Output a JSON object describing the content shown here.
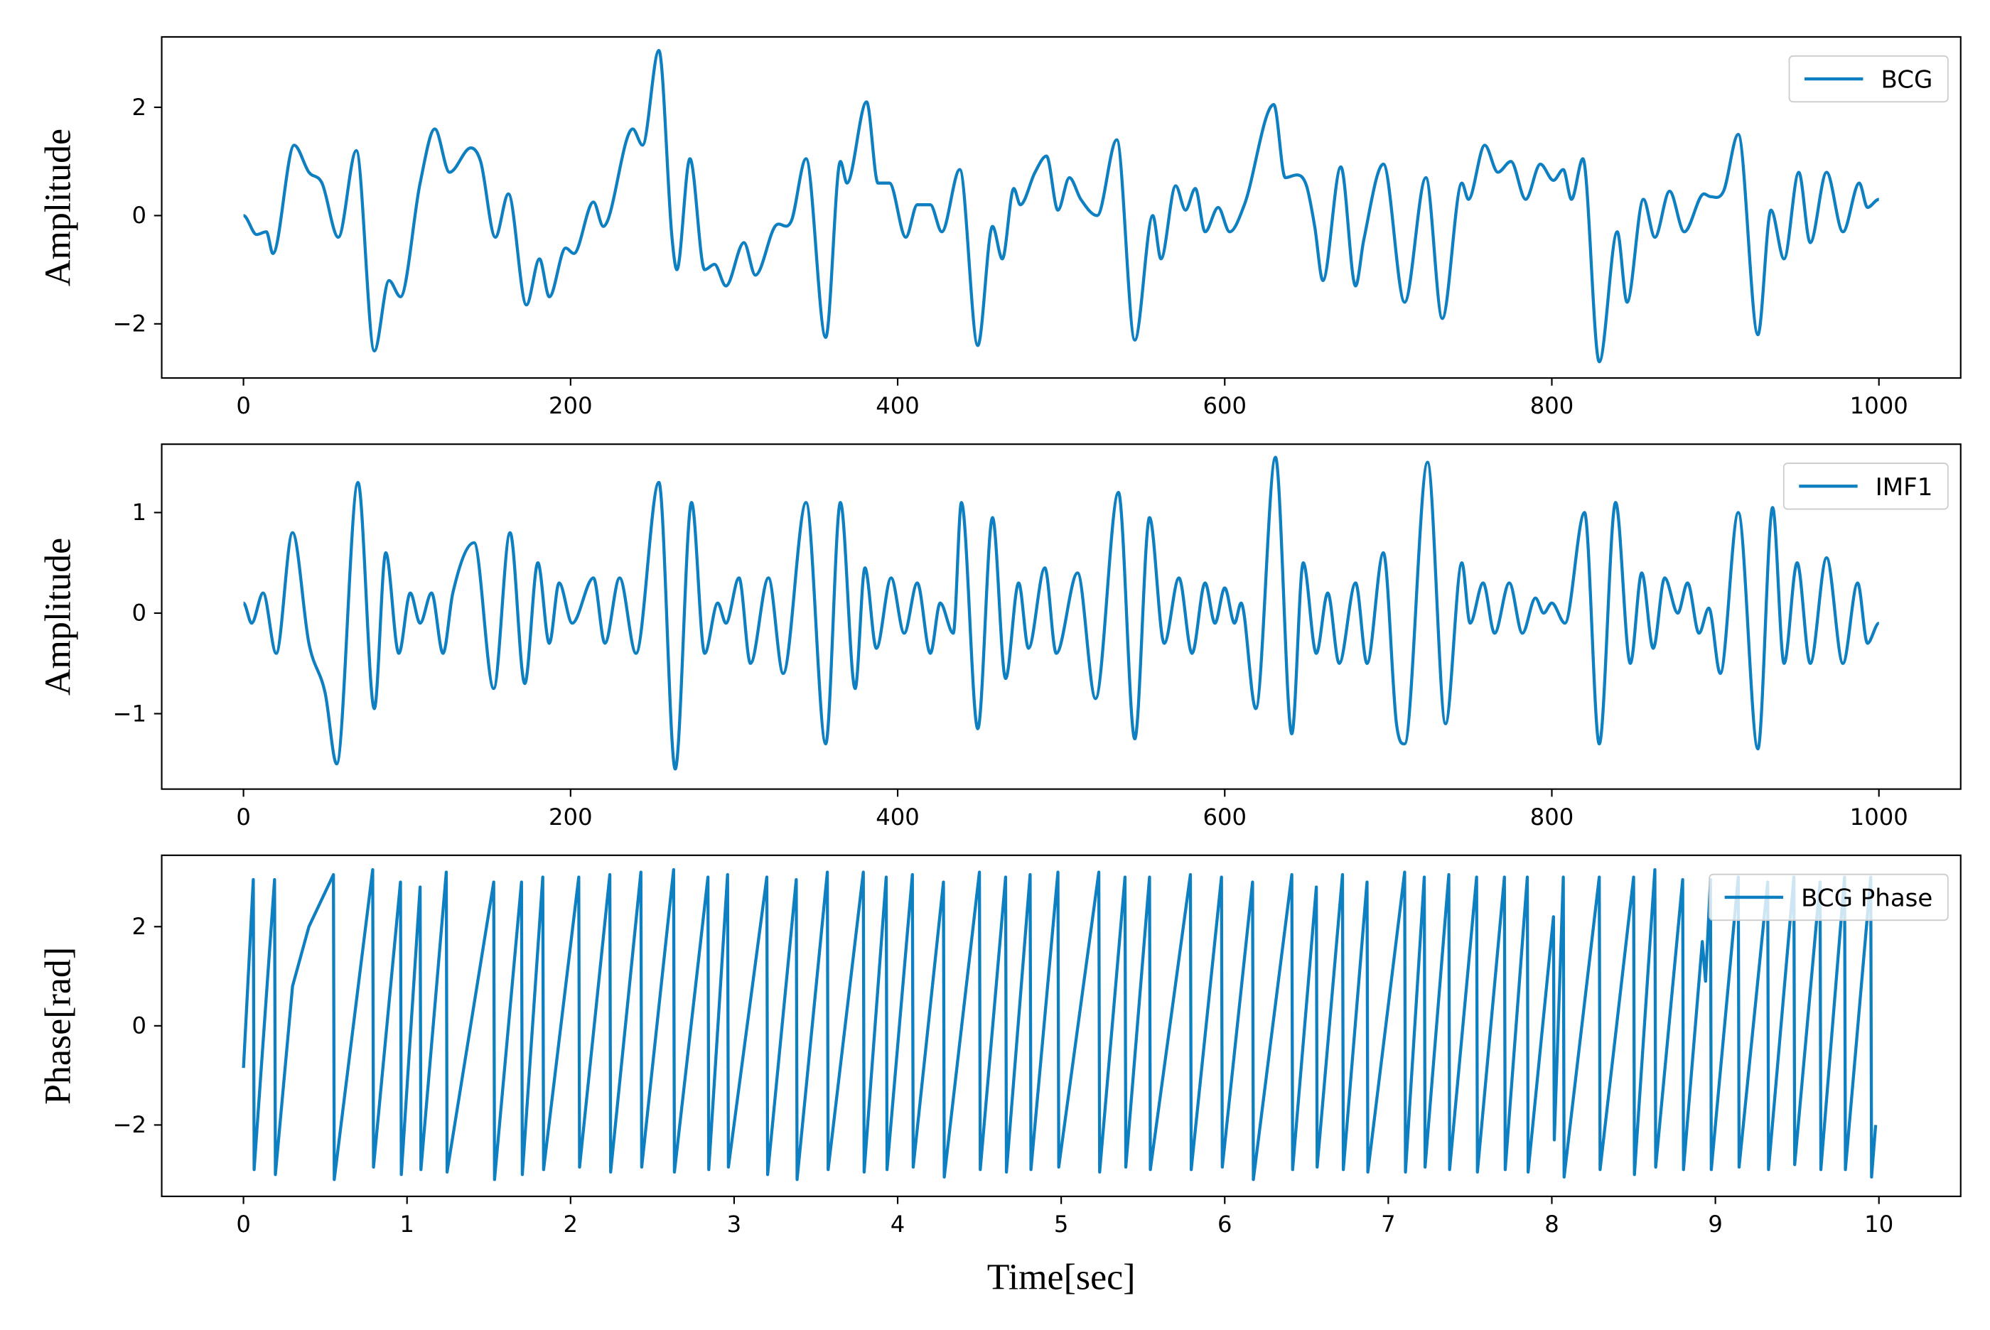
{
  "chart_data": [
    {
      "type": "line",
      "ylabel": "Amplitude",
      "legend": "upper right",
      "xlim": [
        -50,
        1050
      ],
      "ylim": [
        -3.0,
        3.3
      ],
      "xticks": [
        0,
        200,
        400,
        600,
        800,
        1000
      ],
      "yticks": [
        {
          "value": -2,
          "label": "−2"
        },
        0,
        2
      ],
      "series": [
        {
          "name": "BCG",
          "color": "#0e7fc0",
          "x": [
            0,
            8,
            14,
            18,
            31,
            40,
            48,
            58,
            69,
            80,
            89,
            96,
            108,
            117,
            126,
            139,
            145,
            154,
            162,
            173,
            181,
            187,
            197,
            202,
            214,
            220,
            238,
            244,
            254,
            262,
            265,
            273,
            282,
            288,
            295,
            306,
            313,
            325,
            335,
            344,
            356,
            365,
            369,
            381,
            388,
            395,
            405,
            412,
            420,
            427,
            438,
            449,
            458,
            464,
            471,
            475,
            484,
            491,
            498,
            505,
            512,
            522,
            534,
            545,
            556,
            561,
            570,
            576,
            582,
            588,
            596,
            603,
            612,
            630,
            637,
            644,
            650,
            655,
            660,
            671,
            680,
            685,
            697,
            710,
            723,
            733,
            745,
            749,
            759,
            767,
            775,
            784,
            793,
            801,
            807,
            812,
            819,
            829,
            840,
            846,
            856,
            863,
            872,
            881,
            893,
            897,
            905,
            914,
            926,
            934,
            942,
            951,
            958,
            968,
            978,
            988,
            993,
            1000
          ],
          "values": [
            0.0,
            -0.35,
            -0.3,
            -0.7,
            1.3,
            0.8,
            0.6,
            -0.4,
            1.2,
            -2.5,
            -1.2,
            -1.5,
            0.6,
            1.6,
            0.8,
            1.25,
            1.0,
            -0.4,
            0.4,
            -1.65,
            -0.8,
            -1.5,
            -0.6,
            -0.7,
            0.25,
            -0.2,
            1.6,
            1.3,
            3.05,
            -0.4,
            -1.0,
            1.05,
            -1.0,
            -0.9,
            -1.3,
            -0.5,
            -1.1,
            -0.2,
            -0.1,
            1.05,
            -2.25,
            1.0,
            0.6,
            2.1,
            0.6,
            0.6,
            -0.4,
            0.2,
            0.2,
            -0.3,
            0.85,
            -2.4,
            -0.2,
            -0.8,
            0.5,
            0.2,
            0.8,
            1.1,
            0.1,
            0.7,
            0.3,
            0.0,
            1.4,
            -2.3,
            0.0,
            -0.8,
            0.55,
            0.1,
            0.5,
            -0.3,
            0.15,
            -0.3,
            0.2,
            2.05,
            0.7,
            0.75,
            0.55,
            -0.2,
            -1.2,
            0.9,
            -1.3,
            -0.45,
            0.95,
            -1.6,
            0.7,
            -1.9,
            0.6,
            0.3,
            1.3,
            0.8,
            1.0,
            0.3,
            0.95,
            0.65,
            0.85,
            0.3,
            1.05,
            -2.7,
            -0.3,
            -1.6,
            0.3,
            -0.4,
            0.45,
            -0.3,
            0.4,
            0.35,
            0.45,
            1.5,
            -2.2,
            0.1,
            -0.8,
            0.8,
            -0.5,
            0.8,
            -0.3,
            0.6,
            0.15,
            0.3
          ]
        }
      ]
    },
    {
      "type": "line",
      "ylabel": "Amplitude",
      "legend": "upper right",
      "xlim": [
        -50,
        1050
      ],
      "ylim": [
        -1.75,
        1.68
      ],
      "xticks": [
        0,
        200,
        400,
        600,
        800,
        1000
      ],
      "yticks": [
        {
          "value": -1,
          "label": "−1"
        },
        0,
        1
      ],
      "series": [
        {
          "name": "IMF1",
          "color": "#0e7fc0",
          "x": [
            0,
            5,
            12,
            20,
            30,
            40,
            50,
            57,
            70,
            80,
            87,
            95,
            102,
            108,
            115,
            122,
            128,
            141,
            153,
            163,
            172,
            180,
            187,
            193,
            201,
            214,
            221,
            230,
            240,
            254,
            264,
            274,
            282,
            290,
            295,
            303,
            310,
            321,
            330,
            344,
            356,
            365,
            374,
            380,
            387,
            396,
            404,
            412,
            420,
            426,
            434,
            439,
            449,
            458,
            466,
            474,
            480,
            490,
            497,
            510,
            521,
            535,
            545,
            554,
            563,
            572,
            580,
            588,
            594,
            600,
            606,
            610,
            619,
            631,
            641,
            648,
            656,
            663,
            670,
            680,
            687,
            697,
            705,
            710,
            724,
            735,
            745,
            750,
            758,
            765,
            774,
            782,
            790,
            795,
            800,
            808,
            820,
            829,
            839,
            848,
            855,
            862,
            869,
            877,
            883,
            890,
            896,
            903,
            914,
            926,
            935,
            942,
            950,
            958,
            968,
            978,
            987,
            993,
            1000
          ],
          "values": [
            0.1,
            -0.1,
            0.2,
            -0.4,
            0.8,
            -0.3,
            -0.8,
            -1.5,
            1.3,
            -0.95,
            0.6,
            -0.4,
            0.2,
            -0.1,
            0.2,
            -0.4,
            0.2,
            0.7,
            -0.75,
            0.8,
            -0.7,
            0.5,
            -0.3,
            0.3,
            -0.1,
            0.35,
            -0.3,
            0.35,
            -0.4,
            1.3,
            -1.55,
            1.1,
            -0.4,
            0.1,
            -0.1,
            0.35,
            -0.5,
            0.35,
            -0.6,
            1.1,
            -1.3,
            1.1,
            -0.75,
            0.45,
            -0.35,
            0.35,
            -0.2,
            0.3,
            -0.4,
            0.1,
            -0.2,
            1.1,
            -1.15,
            0.95,
            -0.65,
            0.3,
            -0.35,
            0.45,
            -0.4,
            0.4,
            -0.85,
            1.2,
            -1.25,
            0.95,
            -0.3,
            0.35,
            -0.4,
            0.3,
            -0.1,
            0.25,
            -0.1,
            0.1,
            -0.95,
            1.55,
            -1.2,
            0.5,
            -0.4,
            0.2,
            -0.5,
            0.3,
            -0.5,
            0.6,
            -1.1,
            -1.3,
            1.5,
            -1.1,
            0.5,
            -0.1,
            0.3,
            -0.2,
            0.3,
            -0.2,
            0.15,
            0.0,
            0.1,
            -0.1,
            1.0,
            -1.3,
            1.1,
            -0.5,
            0.4,
            -0.35,
            0.35,
            0.0,
            0.3,
            -0.2,
            0.05,
            -0.6,
            1.0,
            -1.35,
            1.05,
            -0.5,
            0.5,
            -0.5,
            0.55,
            -0.5,
            0.3,
            -0.3,
            -0.1
          ]
        }
      ]
    },
    {
      "type": "line",
      "ylabel": "Phase[rad]",
      "xlabel": "Time[sec]",
      "legend": "upper right",
      "xlim": [
        -0.5,
        10.5
      ],
      "ylim": [
        -3.44,
        3.44
      ],
      "xticks": [
        0,
        1,
        2,
        3,
        4,
        5,
        6,
        7,
        8,
        9,
        10
      ],
      "yticks": [
        {
          "value": -2,
          "label": "−2"
        },
        0,
        2
      ],
      "series": [
        {
          "name": "BCG Phase",
          "color": "#0e7fc0",
          "x": [
            0,
            0.06,
            0.065,
            0.19,
            0.195,
            0.3,
            0.4,
            0.55,
            0.555,
            0.79,
            0.795,
            0.96,
            0.965,
            1.08,
            1.085,
            1.24,
            1.245,
            1.53,
            1.535,
            1.7,
            1.705,
            1.83,
            1.835,
            2.05,
            2.055,
            2.24,
            2.245,
            2.43,
            2.435,
            2.63,
            2.635,
            2.84,
            2.845,
            2.96,
            2.965,
            3.2,
            3.205,
            3.38,
            3.385,
            3.57,
            3.575,
            3.79,
            3.795,
            3.93,
            3.935,
            4.09,
            4.095,
            4.28,
            4.285,
            4.5,
            4.505,
            4.66,
            4.665,
            4.81,
            4.815,
            4.98,
            4.985,
            5.23,
            5.235,
            5.39,
            5.395,
            5.54,
            5.545,
            5.79,
            5.795,
            5.98,
            5.985,
            6.17,
            6.175,
            6.41,
            6.415,
            6.56,
            6.565,
            6.72,
            6.725,
            6.87,
            6.875,
            7.1,
            7.105,
            7.22,
            7.225,
            7.37,
            7.375,
            7.54,
            7.545,
            7.71,
            7.715,
            7.85,
            7.855,
            8.01,
            8.015,
            8.07,
            8.075,
            8.29,
            8.295,
            8.5,
            8.505,
            8.63,
            8.635,
            8.8,
            8.805,
            8.92,
            8.94,
            8.97,
            8.975,
            9.14,
            9.145,
            9.32,
            9.325,
            9.48,
            9.485,
            9.64,
            9.645,
            9.79,
            9.795,
            9.95,
            9.955,
            9.98
          ],
          "values": [
            -0.85,
            2.95,
            -2.9,
            2.95,
            -3.0,
            0.8,
            2.0,
            3.05,
            -3.1,
            3.15,
            -2.85,
            2.9,
            -3.0,
            2.8,
            -2.9,
            3.1,
            -2.95,
            2.9,
            -3.1,
            2.9,
            -3.0,
            3.0,
            -2.9,
            3.0,
            -2.85,
            3.05,
            -2.95,
            3.1,
            -2.85,
            3.15,
            -2.95,
            3.0,
            -2.9,
            3.05,
            -2.85,
            3.0,
            -3.0,
            2.95,
            -3.1,
            3.1,
            -2.9,
            3.1,
            -2.95,
            3.0,
            -2.9,
            3.05,
            -2.85,
            2.9,
            -3.05,
            3.1,
            -2.9,
            3.0,
            -2.95,
            3.05,
            -2.9,
            3.1,
            -2.85,
            3.1,
            -2.95,
            3.0,
            -2.85,
            3.0,
            -2.9,
            3.05,
            -2.9,
            3.0,
            -2.85,
            2.9,
            -3.1,
            3.05,
            -2.9,
            2.8,
            -2.85,
            3.05,
            -2.9,
            2.9,
            -2.95,
            3.1,
            -2.95,
            3.0,
            -2.85,
            3.05,
            -2.9,
            3.0,
            -2.95,
            3.0,
            -2.9,
            3.0,
            -2.95,
            2.2,
            -2.3,
            3.0,
            -3.05,
            3.0,
            -2.9,
            3.0,
            -3.0,
            3.15,
            -2.85,
            2.95,
            -2.9,
            1.7,
            0.9,
            2.95,
            -2.9,
            3.0,
            -2.85,
            2.9,
            -2.9,
            3.0,
            -2.8,
            2.9,
            -2.9,
            3.0,
            -2.9,
            3.0,
            -3.05,
            -2.0
          ]
        }
      ]
    }
  ]
}
